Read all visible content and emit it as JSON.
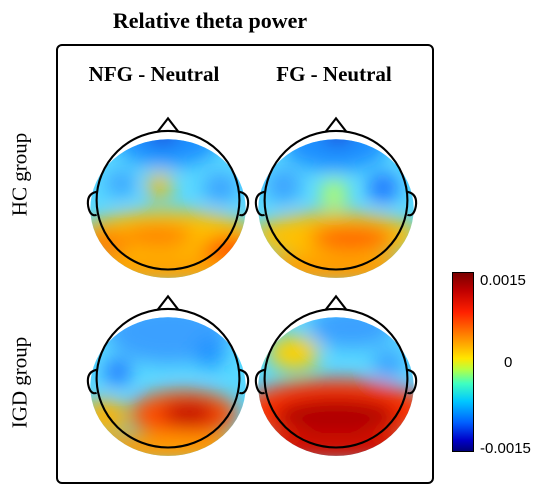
{
  "title": "Relative theta power",
  "columns": [
    "NFG - Neutral",
    "FG - Neutral"
  ],
  "rows": [
    "HC group",
    "IGD group"
  ],
  "colorbar": {
    "max_label": "0.0015",
    "mid_label": "0",
    "min_label": "-0.0015"
  }
}
